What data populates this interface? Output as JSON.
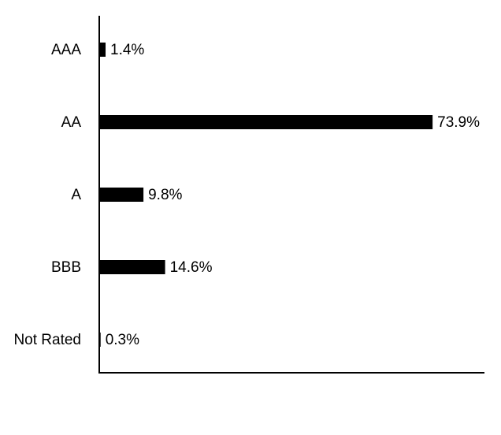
{
  "chart_data": {
    "type": "hbar",
    "categories": [
      "AAA",
      "AA",
      "A",
      "BBB",
      "Not Rated"
    ],
    "values": [
      1.4,
      73.9,
      9.8,
      14.6,
      0.3
    ],
    "value_labels": [
      "1.4%",
      "73.9%",
      "9.8%",
      "14.6%",
      "0.3%"
    ],
    "color": "#000000",
    "xlim": [
      0,
      85.4
    ]
  }
}
